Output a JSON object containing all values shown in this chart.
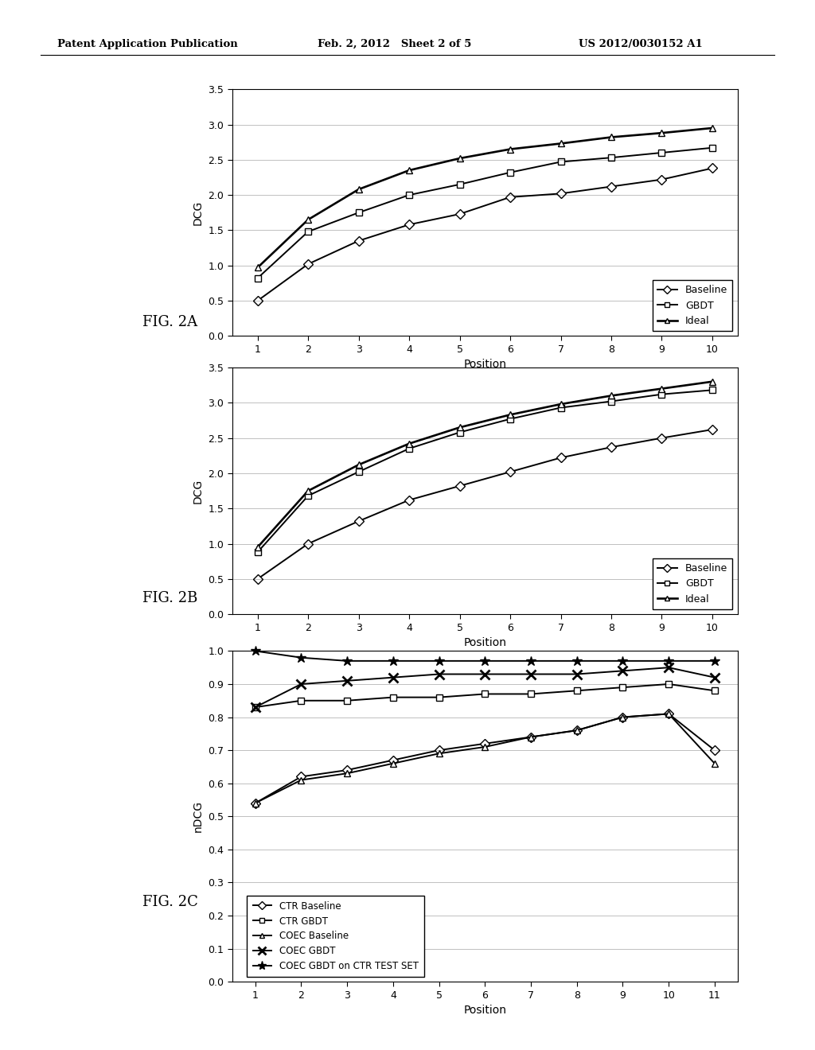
{
  "fig2a": {
    "positions": [
      1,
      2,
      3,
      4,
      5,
      6,
      7,
      8,
      9,
      10
    ],
    "baseline": [
      0.5,
      1.02,
      1.35,
      1.58,
      1.73,
      1.97,
      2.02,
      2.12,
      2.22,
      2.38
    ],
    "gbdt": [
      0.82,
      1.48,
      1.75,
      2.0,
      2.15,
      2.32,
      2.47,
      2.53,
      2.6,
      2.67
    ],
    "ideal": [
      0.97,
      1.65,
      2.08,
      2.35,
      2.52,
      2.65,
      2.73,
      2.82,
      2.88,
      2.95
    ],
    "ylabel": "DCG",
    "xlabel": "Position",
    "ylim": [
      0,
      3.5
    ],
    "yticks": [
      0,
      0.5,
      1,
      1.5,
      2,
      2.5,
      3,
      3.5
    ]
  },
  "fig2b": {
    "positions": [
      1,
      2,
      3,
      4,
      5,
      6,
      7,
      8,
      9,
      10
    ],
    "baseline": [
      0.5,
      1.0,
      1.32,
      1.62,
      1.82,
      2.02,
      2.22,
      2.37,
      2.5,
      2.62
    ],
    "gbdt": [
      0.88,
      1.68,
      2.02,
      2.35,
      2.58,
      2.77,
      2.93,
      3.02,
      3.12,
      3.18
    ],
    "ideal": [
      0.95,
      1.75,
      2.12,
      2.42,
      2.65,
      2.83,
      2.98,
      3.1,
      3.2,
      3.3
    ],
    "ylabel": "DCG",
    "xlabel": "Position",
    "ylim": [
      0,
      3.5
    ],
    "yticks": [
      0,
      0.5,
      1,
      1.5,
      2,
      2.5,
      3,
      3.5
    ]
  },
  "fig2c": {
    "positions": [
      1,
      2,
      3,
      4,
      5,
      6,
      7,
      8,
      9,
      10,
      11
    ],
    "ctr_baseline": [
      0.54,
      0.62,
      0.64,
      0.67,
      0.7,
      0.72,
      0.74,
      0.76,
      0.8,
      0.81,
      0.7
    ],
    "ctr_gbdt": [
      0.83,
      0.85,
      0.85,
      0.86,
      0.86,
      0.87,
      0.87,
      0.88,
      0.89,
      0.9,
      0.88
    ],
    "coec_baseline": [
      0.54,
      0.61,
      0.63,
      0.66,
      0.69,
      0.71,
      0.74,
      0.76,
      0.8,
      0.81,
      0.66
    ],
    "coec_gbdt": [
      0.83,
      0.9,
      0.91,
      0.92,
      0.93,
      0.93,
      0.93,
      0.93,
      0.94,
      0.95,
      0.92
    ],
    "coec_gbdt_ctr_test": [
      1.0,
      0.98,
      0.97,
      0.97,
      0.97,
      0.97,
      0.97,
      0.97,
      0.97,
      0.97,
      0.97
    ],
    "ylabel": "nDCG",
    "xlabel": "Position",
    "ylim": [
      0,
      1
    ],
    "yticks": [
      0,
      0.1,
      0.2,
      0.3,
      0.4,
      0.5,
      0.6,
      0.7,
      0.8,
      0.9,
      1
    ]
  },
  "background_color": "#ffffff",
  "header_left": "Patent Application Publication",
  "header_center": "Feb. 2, 2012   Sheet 2 of 5",
  "header_right": "US 2012/0030152 A1"
}
